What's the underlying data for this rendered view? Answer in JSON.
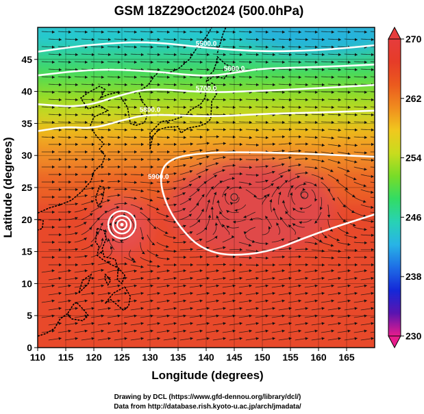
{
  "chart_data": {
    "type": "heatmap",
    "title": "GSM 18Z29Oct2024 (500.0hPa)",
    "xlabel": "Longitude (degrees)",
    "ylabel": "Latitude  (degrees)",
    "xlim": [
      110,
      170
    ],
    "ylim": [
      0,
      50
    ],
    "x_ticks": [
      "110",
      "115",
      "120",
      "125",
      "130",
      "135",
      "140",
      "145",
      "150",
      "155",
      "160",
      "165"
    ],
    "y_ticks": [
      "0",
      "5",
      "10",
      "15",
      "20",
      "25",
      "30",
      "35",
      "40",
      "45"
    ],
    "grid": true,
    "shaded_variable_range": [
      230,
      270
    ],
    "colorbar": {
      "ticks": [
        "270",
        "262",
        "254",
        "246",
        "238",
        "230"
      ],
      "colors": [
        "#e81c8c",
        "#5a14b0",
        "#1428d8",
        "#1e6ee6",
        "#28b4e6",
        "#28d2b4",
        "#32dc64",
        "#78dc28",
        "#c8dc1e",
        "#f0c81e",
        "#f08c1e",
        "#eb5a1e",
        "#e63c28",
        "#e63c3c"
      ]
    },
    "contours": [
      {
        "label": "5500.0",
        "lon": [
          110,
          120,
          130,
          140,
          150,
          160,
          170
        ],
        "lat": [
          46.2,
          47.4,
          47.8,
          46.8,
          46.2,
          46.4,
          47.2
        ]
      },
      {
        "label": "5600.0",
        "lon": [
          110,
          120,
          130,
          140,
          145,
          150,
          160,
          170
        ],
        "lat": [
          42.5,
          43.5,
          43.2,
          42.3,
          42.9,
          43.6,
          43.8,
          44.2
        ]
      },
      {
        "label": "5700.0",
        "lon": [
          110,
          118,
          125,
          130,
          140,
          150,
          160,
          170
        ],
        "lat": [
          38.0,
          37.5,
          39.5,
          40.5,
          39.8,
          40.1,
          40.5,
          41.0
        ]
      },
      {
        "label": "5800.0",
        "lon": [
          110,
          115,
          120,
          125,
          130,
          140,
          150,
          160,
          170
        ],
        "lat": [
          33.8,
          34.5,
          34.2,
          35.5,
          36.5,
          36.0,
          36.5,
          36.7,
          37.0
        ]
      },
      {
        "label": "5900.0",
        "lon": [
          170,
          160,
          150,
          140,
          133,
          131.5,
          134,
          140,
          150,
          160,
          170
        ],
        "lat": [
          29.8,
          30.2,
          30.5,
          30.5,
          29.5,
          26.0,
          20.0,
          14.5,
          14.5,
          18.0,
          20.8
        ]
      }
    ],
    "cyclone_centers": [
      {
        "name": "typhoon",
        "lon": 125,
        "lat": 19.2
      },
      {
        "name": "vortex-1",
        "lon": 145,
        "lat": 23.5
      },
      {
        "name": "vortex-2",
        "lon": 157.5,
        "lat": 23.8
      }
    ]
  },
  "credits": {
    "line1": "Drawing by DCL (https://www.gfd-dennou.org/library/dcl/)",
    "line2": "Data from http://database.rish.kyoto-u.ac.jp/arch/jmadata/"
  }
}
